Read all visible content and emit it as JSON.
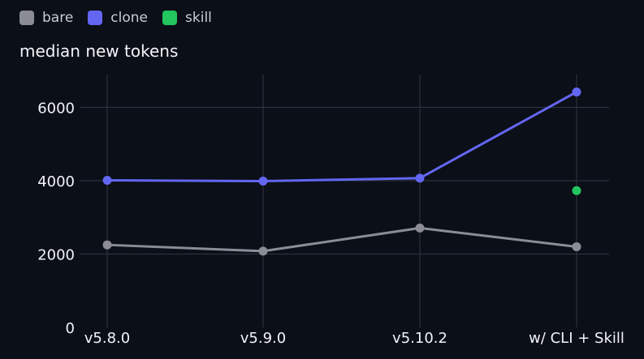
{
  "chart_data": {
    "type": "line",
    "title": "",
    "xlabel": "",
    "ylabel": "median new tokens",
    "categories": [
      "v5.8.0",
      "v5.9.0",
      "v5.10.2",
      "w/ CLI + Skill"
    ],
    "y_ticks": [
      0,
      2000,
      4000,
      6000
    ],
    "ylim": [
      0,
      6900
    ],
    "grid": true,
    "legend_position": "top-left",
    "series": [
      {
        "name": "bare",
        "color": "#8b8d96",
        "values": [
          2250,
          2080,
          2710,
          2200
        ]
      },
      {
        "name": "clone",
        "color": "#6366f1",
        "values": [
          4010,
          3990,
          4070,
          6420
        ]
      },
      {
        "name": "skill",
        "color": "#22c55e",
        "values": [
          null,
          null,
          null,
          3730
        ]
      }
    ]
  },
  "colors": {
    "background": "#0b0f17",
    "grid": "#2b313c",
    "text": "#f2f4f8"
  }
}
